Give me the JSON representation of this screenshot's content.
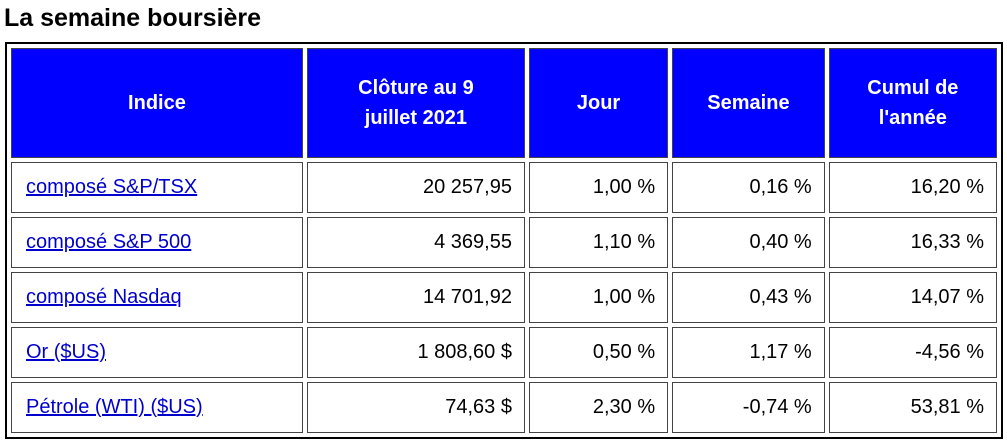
{
  "header": {
    "title": "La semaine boursière"
  },
  "table": {
    "columns": [
      "Indice",
      "Clôture au 9 juillet 2021",
      "Jour",
      "Semaine",
      "Cumul de l'année"
    ],
    "rows": [
      [
        "composé S&P/TSX",
        "20 257,95",
        "1,00 %",
        "0,16 %",
        "16,20 %"
      ],
      [
        "composé S&P 500",
        "4 369,55",
        "1,10 %",
        "0,40 %",
        "16,33 %"
      ],
      [
        "composé Nasdaq",
        "14 701,92",
        "1,00 %",
        "0,43 %",
        "14,07 %"
      ],
      [
        "Or ($US)",
        "1 808,60 $",
        "0,50 %",
        "1,17 %",
        "-4,56 %"
      ],
      [
        "Pétrole (WTI) ($US)",
        "74,63 $",
        "2,30 %",
        "-0,74 %",
        "53,81 %"
      ]
    ]
  }
}
